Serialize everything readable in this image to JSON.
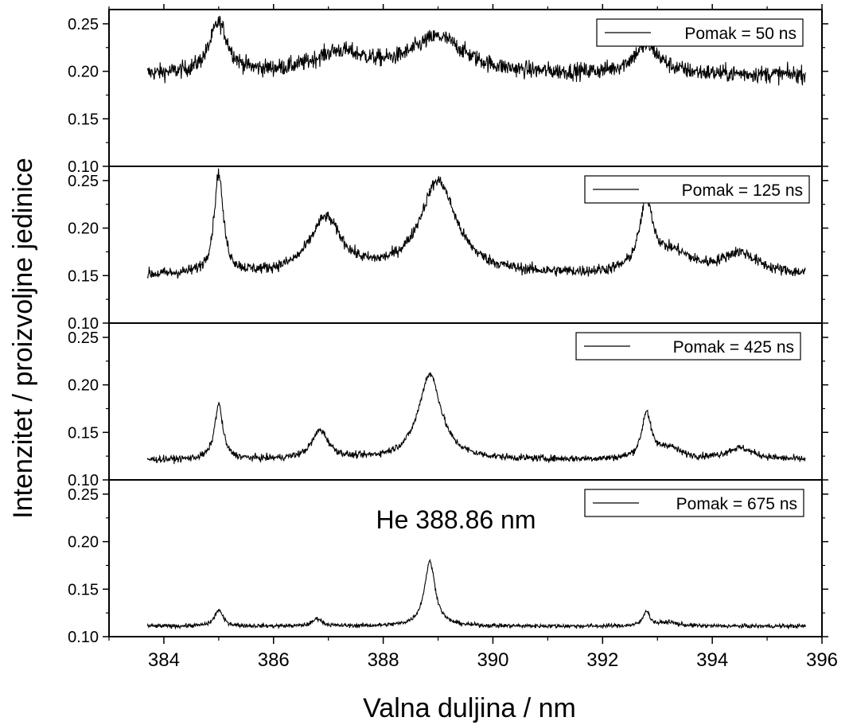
{
  "chart_data": {
    "type": "line",
    "xlabel": "Valna duljina / nm",
    "ylabel": "Intenzitet / proizvoljne jedinice",
    "xlim": [
      383,
      396
    ],
    "x_ticks": [
      384,
      386,
      388,
      390,
      392,
      394,
      396
    ],
    "x_tick_labels": [
      "384",
      "386",
      "388",
      "390",
      "392",
      "394",
      "396"
    ],
    "x_range": [
      383.7,
      395.7
    ],
    "annotation": "He 388.86 nm",
    "grid": false,
    "panels": [
      {
        "legend": "Pomak = 50 ns",
        "ylim": [
          0.1,
          0.265
        ],
        "y_ticks": [
          0.1,
          0.15,
          0.2,
          0.25
        ],
        "y_tick_labels": [
          "0.10",
          "0.15",
          "0.20",
          "0.25"
        ],
        "baseline": 0.196,
        "noise": 0.0075,
        "peaks": [
          {
            "x": 385.0,
            "height": 0.053,
            "width": 0.2
          },
          {
            "x": 387.2,
            "height": 0.022,
            "width": 0.6
          },
          {
            "x": 389.0,
            "height": 0.038,
            "width": 0.6
          },
          {
            "x": 392.8,
            "height": 0.03,
            "width": 0.3
          }
        ]
      },
      {
        "legend": "Pomak = 125 ns",
        "ylim": [
          0.1,
          0.265
        ],
        "y_ticks": [
          0.1,
          0.15,
          0.2,
          0.25
        ],
        "y_tick_labels": [
          "0.10",
          "0.15",
          "0.20",
          "0.25"
        ],
        "baseline": 0.15,
        "noise": 0.005,
        "peaks": [
          {
            "x": 385.0,
            "height": 0.105,
            "width": 0.1
          },
          {
            "x": 386.95,
            "height": 0.058,
            "width": 0.35
          },
          {
            "x": 389.0,
            "height": 0.098,
            "width": 0.4
          },
          {
            "x": 392.8,
            "height": 0.072,
            "width": 0.15
          },
          {
            "x": 393.3,
            "height": 0.02,
            "width": 0.4
          },
          {
            "x": 394.5,
            "height": 0.022,
            "width": 0.4
          }
        ]
      },
      {
        "legend": "Pomak = 425 ns",
        "ylim": [
          0.1,
          0.265
        ],
        "y_ticks": [
          0.1,
          0.15,
          0.2,
          0.25
        ],
        "y_tick_labels": [
          "0.10",
          "0.15",
          "0.20",
          "0.25"
        ],
        "baseline": 0.121,
        "noise": 0.003,
        "peaks": [
          {
            "x": 385.0,
            "height": 0.058,
            "width": 0.09
          },
          {
            "x": 386.85,
            "height": 0.03,
            "width": 0.18
          },
          {
            "x": 388.85,
            "height": 0.09,
            "width": 0.25
          },
          {
            "x": 392.8,
            "height": 0.048,
            "width": 0.1
          },
          {
            "x": 393.2,
            "height": 0.012,
            "width": 0.25
          },
          {
            "x": 394.5,
            "height": 0.012,
            "width": 0.3
          }
        ]
      },
      {
        "legend": "Pomak = 675 ns",
        "ylim": [
          0.1,
          0.265
        ],
        "y_ticks": [
          0.1,
          0.15,
          0.2,
          0.25
        ],
        "y_tick_labels": [
          "0.10",
          "0.15",
          "0.20",
          "0.25"
        ],
        "baseline": 0.111,
        "noise": 0.0018,
        "peaks": [
          {
            "x": 385.0,
            "height": 0.017,
            "width": 0.09
          },
          {
            "x": 386.8,
            "height": 0.008,
            "width": 0.1
          },
          {
            "x": 388.85,
            "height": 0.068,
            "width": 0.12
          },
          {
            "x": 392.8,
            "height": 0.016,
            "width": 0.07
          },
          {
            "x": 393.2,
            "height": 0.004,
            "width": 0.2
          }
        ]
      }
    ]
  }
}
